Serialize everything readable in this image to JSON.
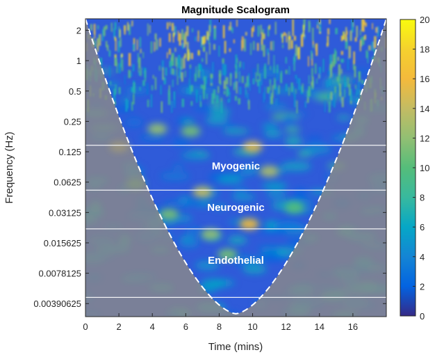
{
  "chart_data": {
    "type": "heatmap",
    "title": "Magnitude Scalogram",
    "xlabel": "Time (mins)",
    "ylabel": "Frequency (Hz)",
    "xlim": [
      0,
      18
    ],
    "x_ticks": [
      "0",
      "2",
      "4",
      "6",
      "8",
      "10",
      "12",
      "14",
      "16"
    ],
    "x_tick_values": [
      0,
      2,
      4,
      6,
      8,
      10,
      12,
      14,
      16
    ],
    "y_scale": "log2",
    "ylim": [
      0.0029,
      2.6
    ],
    "y_ticks": [
      "2",
      "1",
      "0.5",
      "0.25",
      "0.125",
      "0.0625",
      "0.03125",
      "0.015625",
      "0.0078125",
      "0.00390625"
    ],
    "y_tick_values": [
      2,
      1,
      0.5,
      0.25,
      0.125,
      0.0625,
      0.03125,
      0.015625,
      0.0078125,
      0.00390625
    ],
    "colorbar": {
      "min": 0,
      "max": 20,
      "ticks": [
        "0",
        "2",
        "4",
        "6",
        "8",
        "10",
        "12",
        "14",
        "16",
        "18",
        "20"
      ],
      "tick_values": [
        0,
        2,
        4,
        6,
        8,
        10,
        12,
        14,
        16,
        18,
        20
      ],
      "colormap": "parula"
    },
    "band_boundaries_hz": [
      0.145,
      0.052,
      0.0215,
      0.0045
    ],
    "bands": [
      {
        "name": "Myogenic",
        "time": 9.0,
        "freq": 0.09
      },
      {
        "name": "Neurogenic",
        "time": 9.0,
        "freq": 0.035
      },
      {
        "name": "Endothelial",
        "time": 9.0,
        "freq": 0.0105
      }
    ],
    "hotspots": [
      {
        "time": 9.8,
        "freq": 0.024,
        "magnitude": 16
      },
      {
        "time": 7.0,
        "freq": 0.05,
        "magnitude": 14
      },
      {
        "time": 10.0,
        "freq": 0.14,
        "magnitude": 15
      },
      {
        "time": 2.0,
        "freq": 0.14,
        "magnitude": 14
      },
      {
        "time": 4.3,
        "freq": 0.21,
        "magnitude": 12
      },
      {
        "time": 6.3,
        "freq": 0.2,
        "magnitude": 11
      },
      {
        "time": 11.0,
        "freq": 0.08,
        "magnitude": 13
      },
      {
        "time": 7.5,
        "freq": 0.019,
        "magnitude": 12
      },
      {
        "time": 5.0,
        "freq": 0.03,
        "magnitude": 11
      },
      {
        "time": 8.5,
        "freq": 0.012,
        "magnitude": 11
      },
      {
        "time": 12.5,
        "freq": 0.035,
        "magnitude": 10
      },
      {
        "time": 3.0,
        "freq": 0.06,
        "magnitude": 10
      }
    ],
    "cone_of_influence": "dashed white line; region outside is shaded",
    "grid": false
  }
}
